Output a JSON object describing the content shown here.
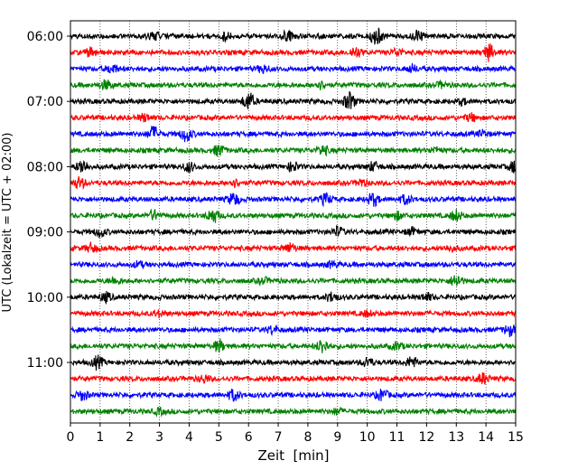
{
  "chart_data": {
    "type": "line",
    "title": "",
    "xlabel": "Zeit  [min]",
    "ylabel": "UTC (Lokalzeit = UTC + 02:00)",
    "xlim": [
      0,
      15
    ],
    "xticks": [
      0,
      1,
      2,
      3,
      4,
      5,
      6,
      7,
      8,
      9,
      10,
      11,
      12,
      13,
      14,
      15
    ],
    "grid": "vertical dotted lines at each minute",
    "y_tick_labels": [
      "06:00",
      "07:00",
      "08:00",
      "09:00",
      "10:00",
      "11:00"
    ],
    "trace_start_times": [
      "06:00",
      "06:15",
      "06:30",
      "06:45",
      "07:00",
      "07:15",
      "07:30",
      "07:45",
      "08:00",
      "08:15",
      "08:30",
      "08:45",
      "09:00",
      "09:15",
      "09:30",
      "09:45",
      "10:00",
      "10:15",
      "10:30",
      "10:45",
      "11:00",
      "11:15",
      "11:30",
      "11:45"
    ],
    "trace_colors": [
      "#000000",
      "#ff0000",
      "#0000ff",
      "#008000"
    ],
    "trace_events": [
      [
        [
          10.3,
          1.0
        ],
        [
          11.7,
          0.6
        ],
        [
          7.3,
          0.5
        ],
        [
          2.8,
          0.4
        ],
        [
          5.2,
          0.4
        ]
      ],
      [
        [
          14.1,
          0.9
        ],
        [
          9.6,
          0.6
        ],
        [
          0.7,
          0.5
        ],
        [
          11.0,
          0.4
        ]
      ],
      [
        [
          1.4,
          0.5
        ],
        [
          6.5,
          0.4
        ],
        [
          11.5,
          0.4
        ]
      ],
      [
        [
          1.2,
          0.5
        ],
        [
          8.4,
          0.4
        ],
        [
          12.5,
          0.3
        ]
      ],
      [
        [
          6.0,
          1.0
        ],
        [
          9.4,
          1.0
        ],
        [
          13.2,
          0.3
        ]
      ],
      [
        [
          2.5,
          0.4
        ],
        [
          13.5,
          0.4
        ]
      ],
      [
        [
          2.8,
          0.8
        ],
        [
          3.9,
          0.8
        ],
        [
          13.9,
          0.3
        ]
      ],
      [
        [
          5.0,
          0.6
        ],
        [
          8.5,
          0.5
        ],
        [
          12.3,
          0.3
        ]
      ],
      [
        [
          0.4,
          0.8
        ],
        [
          4.0,
          0.5
        ],
        [
          7.5,
          0.5
        ],
        [
          10.2,
          0.5
        ],
        [
          15.0,
          0.8
        ]
      ],
      [
        [
          0.3,
          0.6
        ],
        [
          5.5,
          0.4
        ],
        [
          9.8,
          0.4
        ]
      ],
      [
        [
          5.5,
          0.7
        ],
        [
          8.6,
          0.6
        ],
        [
          10.2,
          0.7
        ],
        [
          11.3,
          0.5
        ]
      ],
      [
        [
          2.8,
          0.5
        ],
        [
          4.8,
          0.8
        ],
        [
          11.0,
          0.4
        ],
        [
          13.0,
          0.6
        ]
      ],
      [
        [
          1.0,
          0.5
        ],
        [
          9.0,
          0.5
        ],
        [
          11.5,
          0.4
        ]
      ],
      [
        [
          0.7,
          0.5
        ],
        [
          7.4,
          0.5
        ],
        [
          12.8,
          0.3
        ]
      ],
      [
        [
          2.3,
          0.3
        ],
        [
          8.8,
          0.3
        ]
      ],
      [
        [
          1.5,
          0.4
        ],
        [
          6.5,
          0.3
        ],
        [
          13.0,
          0.7
        ]
      ],
      [
        [
          1.2,
          0.5
        ],
        [
          8.8,
          0.5
        ],
        [
          12.0,
          0.4
        ]
      ],
      [
        [
          3.0,
          0.3
        ],
        [
          10.0,
          0.3
        ]
      ],
      [
        [
          6.8,
          0.4
        ],
        [
          14.8,
          0.6
        ]
      ],
      [
        [
          5.0,
          0.6
        ],
        [
          8.5,
          0.8
        ],
        [
          11.0,
          0.4
        ]
      ],
      [
        [
          0.9,
          0.7
        ],
        [
          10.0,
          0.5
        ],
        [
          11.5,
          0.6
        ]
      ],
      [
        [
          4.5,
          0.4
        ],
        [
          13.9,
          0.6
        ]
      ],
      [
        [
          0.4,
          0.5
        ],
        [
          5.5,
          0.6
        ],
        [
          10.5,
          0.6
        ]
      ],
      [
        [
          3.0,
          0.3
        ],
        [
          9.0,
          0.3
        ]
      ]
    ]
  }
}
